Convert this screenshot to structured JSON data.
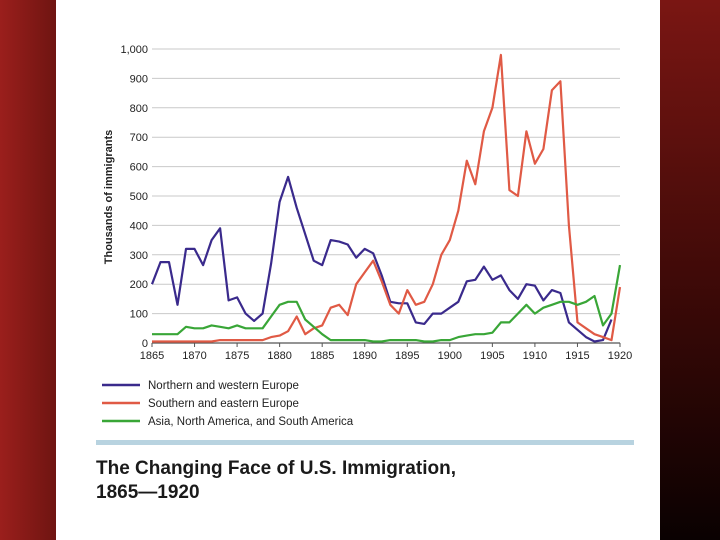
{
  "chart_data": {
    "type": "line",
    "title_lines": [
      "The Changing Face of U.S. Immigration,",
      "1865—1920"
    ],
    "ylabel": "Thousands of immigrants",
    "xlabel": "",
    "xlim": [
      1865,
      1920
    ],
    "ylim": [
      0,
      1000
    ],
    "x_ticks": [
      1865,
      1870,
      1875,
      1880,
      1885,
      1890,
      1895,
      1900,
      1905,
      1910,
      1915,
      1920
    ],
    "y_ticks": [
      0,
      100,
      200,
      300,
      400,
      500,
      600,
      700,
      800,
      900,
      1000
    ],
    "y_tick_labels": [
      "0",
      "100",
      "200",
      "300",
      "400",
      "500",
      "600",
      "700",
      "800",
      "900",
      "1,000"
    ],
    "grid": true,
    "legend_position": "bottom-left",
    "x": [
      1865,
      1866,
      1867,
      1868,
      1869,
      1870,
      1871,
      1872,
      1873,
      1874,
      1875,
      1876,
      1877,
      1878,
      1879,
      1880,
      1881,
      1882,
      1883,
      1884,
      1885,
      1886,
      1887,
      1888,
      1889,
      1890,
      1891,
      1892,
      1893,
      1894,
      1895,
      1896,
      1897,
      1898,
      1899,
      1900,
      1901,
      1902,
      1903,
      1904,
      1905,
      1906,
      1907,
      1908,
      1909,
      1910,
      1911,
      1912,
      1913,
      1914,
      1915,
      1916,
      1917,
      1918,
      1919,
      1920
    ],
    "series": [
      {
        "name": "Northern and western Europe",
        "color": "#3a2a8c",
        "values": [
          200,
          275,
          275,
          130,
          320,
          320,
          265,
          350,
          390,
          145,
          155,
          100,
          75,
          100,
          270,
          480,
          565,
          460,
          370,
          280,
          265,
          350,
          345,
          335,
          290,
          320,
          305,
          230,
          140,
          135,
          135,
          70,
          65,
          100,
          100,
          120,
          140,
          210,
          215,
          260,
          215,
          230,
          180,
          150,
          200,
          195,
          145,
          180,
          170,
          70,
          45,
          20,
          5,
          10,
          80,
          null
        ]
      },
      {
        "name": "Southern and eastern Europe",
        "color": "#e05a45",
        "values": [
          5,
          5,
          5,
          5,
          5,
          5,
          5,
          5,
          10,
          10,
          10,
          10,
          10,
          10,
          20,
          25,
          40,
          90,
          30,
          50,
          60,
          120,
          130,
          95,
          200,
          240,
          280,
          210,
          130,
          100,
          180,
          130,
          140,
          200,
          300,
          350,
          450,
          620,
          540,
          720,
          800,
          980,
          520,
          500,
          720,
          610,
          660,
          860,
          890,
          400,
          70,
          50,
          30,
          20,
          10,
          190
        ]
      },
      {
        "name": "Asia, North America, and South America",
        "color": "#39a637",
        "values": [
          30,
          30,
          30,
          30,
          55,
          50,
          50,
          60,
          55,
          50,
          60,
          50,
          50,
          50,
          90,
          130,
          140,
          140,
          80,
          55,
          30,
          10,
          10,
          10,
          10,
          10,
          5,
          5,
          10,
          10,
          10,
          10,
          5,
          5,
          10,
          10,
          20,
          25,
          30,
          30,
          35,
          70,
          70,
          100,
          130,
          100,
          120,
          130,
          140,
          140,
          130,
          140,
          160,
          60,
          100,
          265
        ]
      }
    ]
  }
}
